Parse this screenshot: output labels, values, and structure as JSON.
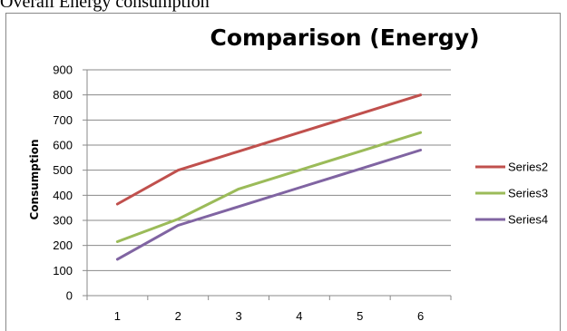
{
  "caption": "Overall Energy consumption",
  "chart_data": {
    "type": "line",
    "title": "Comparison (Energy)",
    "xlabel": "",
    "ylabel": "Consumption",
    "categories": [
      "1",
      "2",
      "3",
      "4",
      "5",
      "6"
    ],
    "ylim": [
      0,
      900
    ],
    "yticks": [
      0,
      100,
      200,
      300,
      400,
      500,
      600,
      700,
      800,
      900
    ],
    "grid": true,
    "legend_position": "right",
    "series": [
      {
        "name": "Series2",
        "color": "#c0504d",
        "values": [
          365,
          500,
          575,
          650,
          725,
          800
        ]
      },
      {
        "name": "Series3",
        "color": "#9bbb59",
        "values": [
          215,
          305,
          425,
          500,
          575,
          650
        ]
      },
      {
        "name": "Series4",
        "color": "#8064a2",
        "values": [
          145,
          280,
          355,
          430,
          505,
          580
        ]
      }
    ]
  }
}
